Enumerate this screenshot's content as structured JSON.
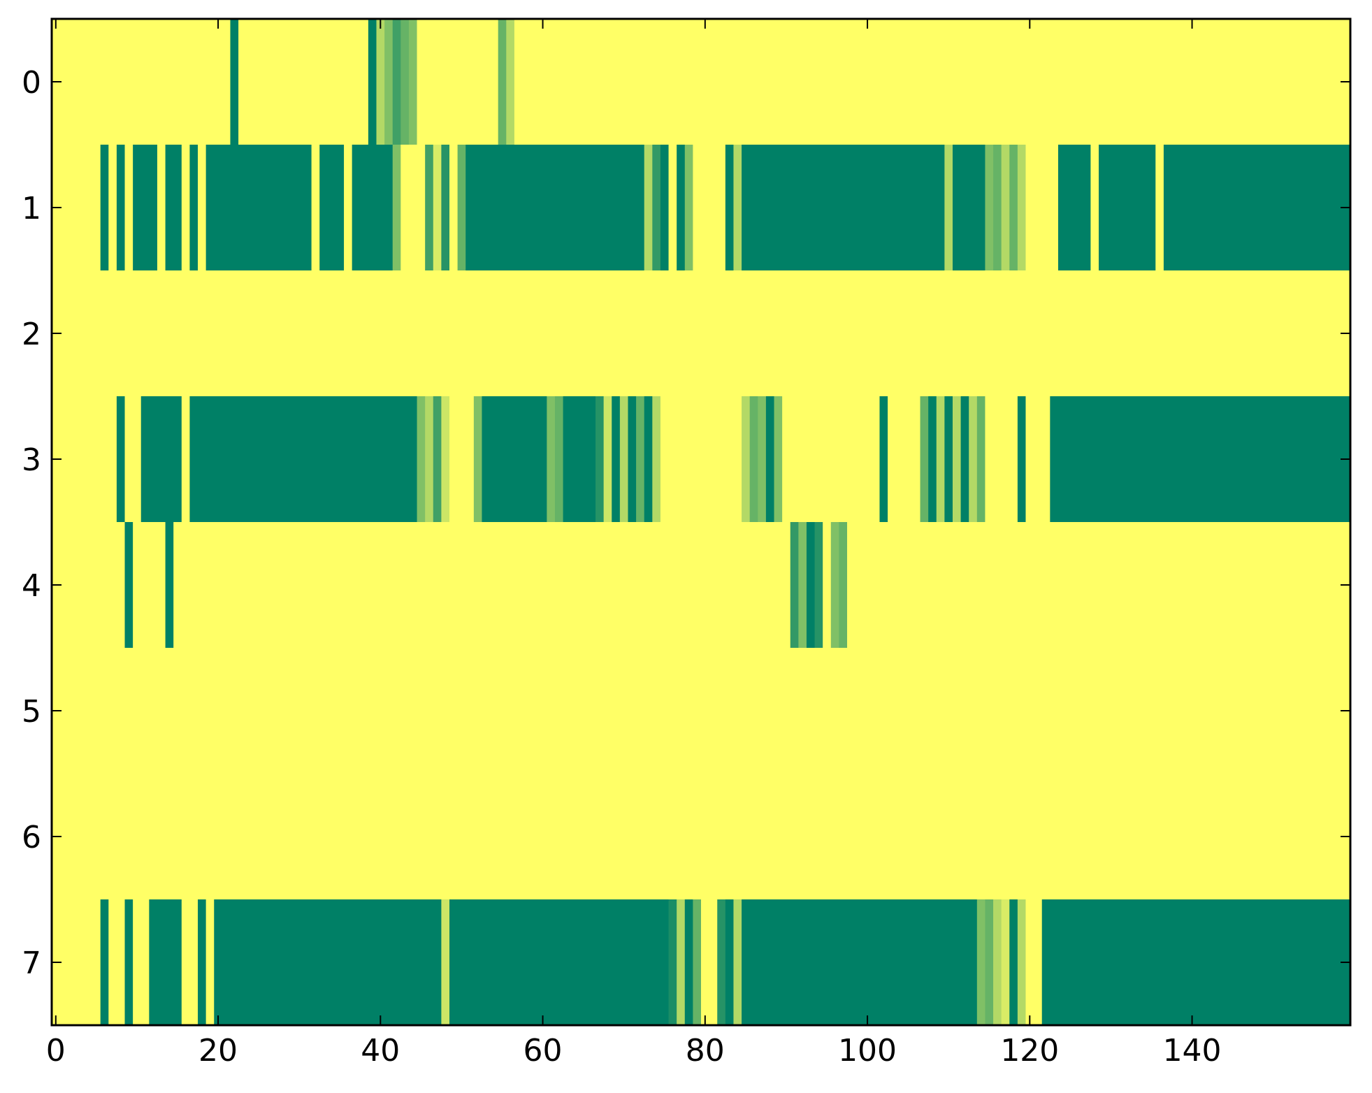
{
  "chart_data": {
    "type": "heatmap",
    "title": "",
    "xlabel": "",
    "ylabel": "",
    "xlim": [
      -0.5,
      159.5
    ],
    "ylim": [
      7.5,
      -0.5
    ],
    "x_ticks": [
      0,
      20,
      40,
      60,
      80,
      100,
      120,
      140
    ],
    "y_ticks": [
      0,
      1,
      2,
      3,
      4,
      5,
      6,
      7
    ],
    "grid": false,
    "legend": "none",
    "n_columns": 160,
    "colormap": "summer_r",
    "colors": {
      "low": "#ffff66",
      "high": "#008066"
    },
    "value_range": [
      0,
      1
    ],
    "rows": [
      {
        "row": 0,
        "default": 0,
        "segments": [
          [
            22,
            22,
            1.0
          ],
          [
            39,
            39,
            1.0
          ],
          [
            40,
            40,
            0.3
          ],
          [
            41,
            41,
            0.5
          ],
          [
            42,
            42,
            0.75
          ],
          [
            43,
            43,
            0.6
          ],
          [
            44,
            44,
            0.5
          ],
          [
            55,
            55,
            0.6
          ],
          [
            56,
            56,
            0.3
          ]
        ]
      },
      {
        "row": 1,
        "default": 1,
        "segments": [
          [
            0,
            5,
            0.0
          ],
          [
            7,
            7,
            0.0
          ],
          [
            9,
            9,
            0.0
          ],
          [
            13,
            13,
            0.0
          ],
          [
            16,
            16,
            0.0
          ],
          [
            18,
            18,
            0.0
          ],
          [
            32,
            32,
            0.0
          ],
          [
            36,
            36,
            0.0
          ],
          [
            42,
            42,
            0.5
          ],
          [
            43,
            45,
            0.0
          ],
          [
            46,
            46,
            0.75
          ],
          [
            47,
            47,
            0.15
          ],
          [
            48,
            48,
            0.85
          ],
          [
            49,
            49,
            0.0
          ],
          [
            50,
            50,
            0.6
          ],
          [
            73,
            73,
            0.3
          ],
          [
            74,
            74,
            0.8
          ],
          [
            76,
            76,
            0.0
          ],
          [
            78,
            78,
            0.5
          ],
          [
            79,
            82,
            0.0
          ],
          [
            84,
            84,
            0.3
          ],
          [
            110,
            110,
            0.3
          ],
          [
            115,
            115,
            0.5
          ],
          [
            116,
            116,
            0.6
          ],
          [
            117,
            117,
            0.3
          ],
          [
            118,
            118,
            0.6
          ],
          [
            119,
            119,
            0.3
          ],
          [
            120,
            123,
            0.0
          ],
          [
            128,
            128,
            0.0
          ],
          [
            136,
            136,
            0.0
          ]
        ]
      },
      {
        "row": 2,
        "default": 0,
        "segments": []
      },
      {
        "row": 3,
        "default": 1,
        "segments": [
          [
            0,
            7,
            0.0
          ],
          [
            9,
            10,
            0.0
          ],
          [
            16,
            16,
            0.0
          ],
          [
            45,
            45,
            0.5
          ],
          [
            46,
            46,
            0.3
          ],
          [
            47,
            47,
            0.75
          ],
          [
            48,
            48,
            0.2
          ],
          [
            49,
            51,
            0.0
          ],
          [
            52,
            52,
            0.5
          ],
          [
            61,
            61,
            0.5
          ],
          [
            62,
            62,
            0.6
          ],
          [
            67,
            67,
            0.85
          ],
          [
            68,
            68,
            0.2
          ],
          [
            70,
            70,
            0.3
          ],
          [
            72,
            72,
            0.6
          ],
          [
            74,
            74,
            0.3
          ],
          [
            75,
            84,
            0.0
          ],
          [
            85,
            85,
            0.3
          ],
          [
            86,
            86,
            0.6
          ],
          [
            87,
            87,
            0.5
          ],
          [
            89,
            89,
            0.5
          ],
          [
            90,
            101,
            0.0
          ],
          [
            103,
            106,
            0.0
          ],
          [
            107,
            107,
            0.6
          ],
          [
            109,
            109,
            0.3
          ],
          [
            111,
            111,
            0.3
          ],
          [
            113,
            113,
            0.3
          ],
          [
            114,
            114,
            0.6
          ],
          [
            115,
            118,
            0.0
          ],
          [
            120,
            122,
            0.0
          ]
        ]
      },
      {
        "row": 4,
        "default": 0,
        "segments": [
          [
            9,
            9,
            1.0
          ],
          [
            14,
            14,
            1.0
          ],
          [
            91,
            91,
            0.8
          ],
          [
            92,
            92,
            0.5
          ],
          [
            93,
            93,
            1.0
          ],
          [
            94,
            94,
            0.85
          ],
          [
            96,
            96,
            0.5
          ],
          [
            97,
            97,
            0.6
          ]
        ]
      },
      {
        "row": 5,
        "default": 0,
        "segments": []
      },
      {
        "row": 6,
        "default": 0,
        "segments": []
      },
      {
        "row": 7,
        "default": 1,
        "segments": [
          [
            0,
            5,
            0.0
          ],
          [
            7,
            8,
            0.0
          ],
          [
            10,
            11,
            0.0
          ],
          [
            16,
            17,
            0.0
          ],
          [
            19,
            19,
            0.0
          ],
          [
            48,
            48,
            0.2
          ],
          [
            76,
            76,
            0.9
          ],
          [
            77,
            77,
            0.3
          ],
          [
            79,
            79,
            0.6
          ],
          [
            80,
            81,
            0.0
          ],
          [
            82,
            82,
            0.85
          ],
          [
            84,
            84,
            0.3
          ],
          [
            114,
            114,
            0.5
          ],
          [
            115,
            115,
            0.6
          ],
          [
            116,
            116,
            0.3
          ],
          [
            117,
            117,
            0.15
          ],
          [
            119,
            119,
            0.3
          ],
          [
            120,
            121,
            0.0
          ]
        ]
      }
    ]
  }
}
